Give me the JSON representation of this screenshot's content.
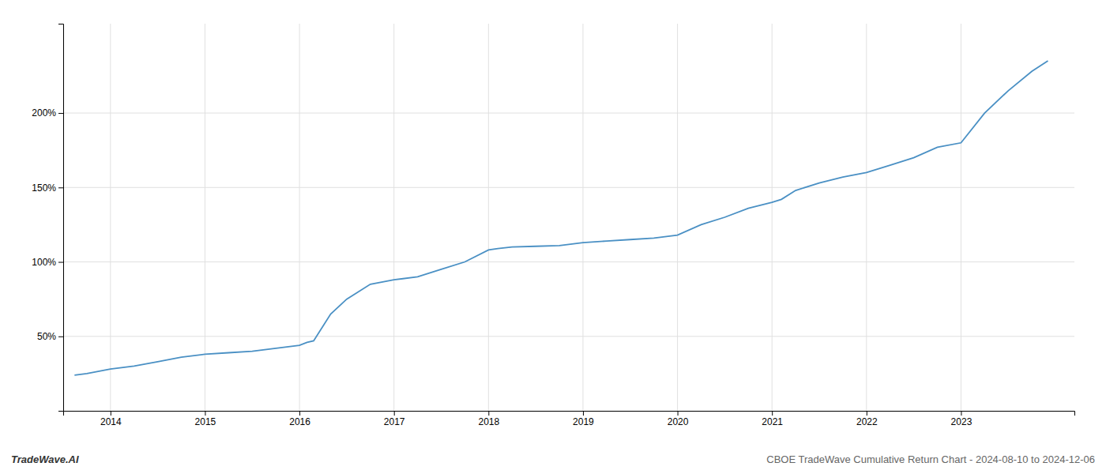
{
  "chart_data": {
    "type": "line",
    "title": "CBOE TradeWave Cumulative Return Chart - 2024-08-10 to 2024-12-06",
    "annotations": [
      "TradeWave.AI"
    ],
    "x": [
      2013.62,
      2013.75,
      2014.0,
      2014.25,
      2014.5,
      2014.75,
      2015.0,
      2015.25,
      2015.5,
      2015.75,
      2016.0,
      2016.08,
      2016.15,
      2016.33,
      2016.5,
      2016.75,
      2017.0,
      2017.25,
      2017.5,
      2017.75,
      2018.0,
      2018.1,
      2018.25,
      2018.5,
      2018.75,
      2019.0,
      2019.25,
      2019.5,
      2019.75,
      2020.0,
      2020.25,
      2020.5,
      2020.75,
      2021.0,
      2021.1,
      2021.25,
      2021.5,
      2021.75,
      2022.0,
      2022.25,
      2022.5,
      2022.75,
      2023.0,
      2023.25,
      2023.5,
      2023.75,
      2023.92
    ],
    "values": [
      24,
      25,
      28,
      30,
      33,
      36,
      38,
      39,
      40,
      42,
      44,
      46,
      47,
      65,
      75,
      85,
      88,
      90,
      95,
      100,
      108,
      109,
      110,
      110.5,
      111,
      113,
      114,
      115,
      116,
      118,
      125,
      130,
      136,
      140,
      142,
      148,
      153,
      157,
      160,
      165,
      170,
      177,
      180,
      200,
      215,
      228,
      235
    ],
    "color": "#4a90c4",
    "xlim": [
      2013.5,
      2024.2
    ],
    "ylim": [
      0,
      260
    ],
    "xticks": [
      2014,
      2015,
      2016,
      2017,
      2018,
      2019,
      2020,
      2021,
      2022,
      2023
    ],
    "yticks": [
      {
        "value": 50,
        "label": "50%"
      },
      {
        "value": 100,
        "label": "100%"
      },
      {
        "value": 150,
        "label": "150%"
      },
      {
        "value": 200,
        "label": "200%"
      }
    ],
    "grid": true
  }
}
